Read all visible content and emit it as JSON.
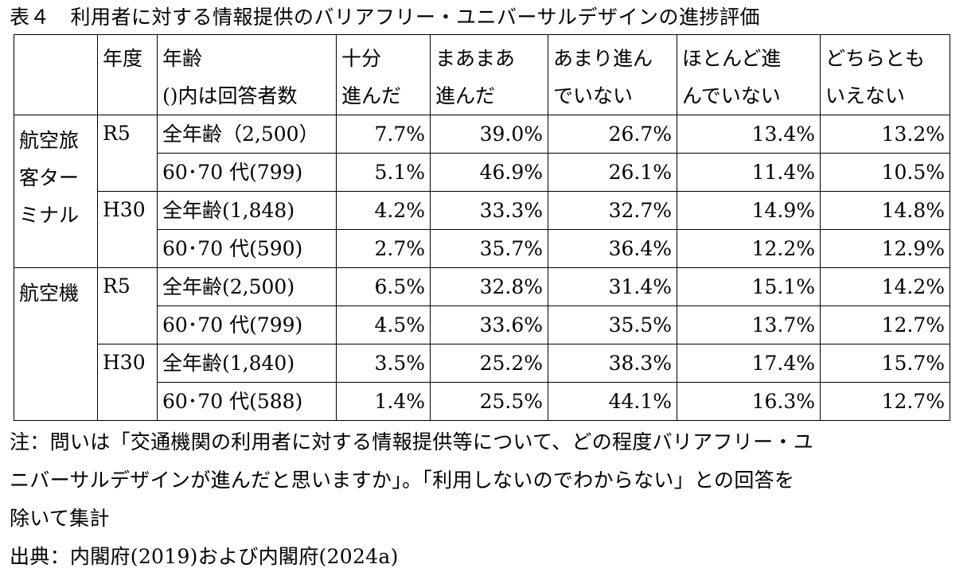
{
  "caption": "表４　利用者に対する情報提供のバリアフリー・ユニバーサルデザインの進捗評価",
  "headers": {
    "category": "",
    "year": "年度",
    "age_line1": "年齢",
    "age_line2": "()内は回答者数",
    "c1_line1": "十分",
    "c1_line2": "進んだ",
    "c2_line1": "まあまあ",
    "c2_line2": "進んだ",
    "c3_line1": "あまり進ん",
    "c3_line2": "でいない",
    "c4_line1": "ほとんど進",
    "c4_line2": "んでいない",
    "c5_line1": "どちらとも",
    "c5_line2": "いえない"
  },
  "sections": [
    {
      "category_lines": [
        "航空旅",
        "客ター",
        "ミナル"
      ],
      "years": [
        {
          "year": "R5",
          "rows": [
            {
              "group": "全年齢（2,500）",
              "values": [
                "7.7%",
                "39.0%",
                "26.7%",
                "13.4%",
                "13.2%"
              ]
            },
            {
              "group": "60･70 代(799)",
              "values": [
                "5.1%",
                "46.9%",
                "26.1%",
                "11.4%",
                "10.5%"
              ]
            }
          ]
        },
        {
          "year": "H30",
          "rows": [
            {
              "group": "全年齢(1,848)",
              "values": [
                "4.2%",
                "33.3%",
                "32.7%",
                "14.9%",
                "14.8%"
              ]
            },
            {
              "group": "60･70 代(590)",
              "values": [
                "2.7%",
                "35.7%",
                "36.4%",
                "12.2%",
                "12.9%"
              ]
            }
          ]
        }
      ]
    },
    {
      "category_lines": [
        "航空機"
      ],
      "years": [
        {
          "year": "R5",
          "rows": [
            {
              "group": "全年齢(2,500)",
              "values": [
                "6.5%",
                "32.8%",
                "31.4%",
                "15.1%",
                "14.2%"
              ]
            },
            {
              "group": "60･70 代(799)",
              "values": [
                "4.5%",
                "33.6%",
                "35.5%",
                "13.7%",
                "12.7%"
              ]
            }
          ]
        },
        {
          "year": "H30",
          "rows": [
            {
              "group": "全年齢(1,840)",
              "values": [
                "3.5%",
                "25.2%",
                "38.3%",
                "17.4%",
                "15.7%"
              ]
            },
            {
              "group": "60･70 代(588)",
              "values": [
                "1.4%",
                "25.5%",
                "44.1%",
                "16.3%",
                "12.7%"
              ]
            }
          ]
        }
      ]
    }
  ],
  "notes": {
    "line1": "注：問いは「交通機関の利用者に対する情報提供等について、どの程度バリアフリー・ユ",
    "line2": "ニバーサルデザインが進んだと思いますか」。「利用しないのでわからない」との回答を",
    "line3": "除いて集計",
    "source": "出典：内閣府(2019)および内閣府(2024a)"
  }
}
